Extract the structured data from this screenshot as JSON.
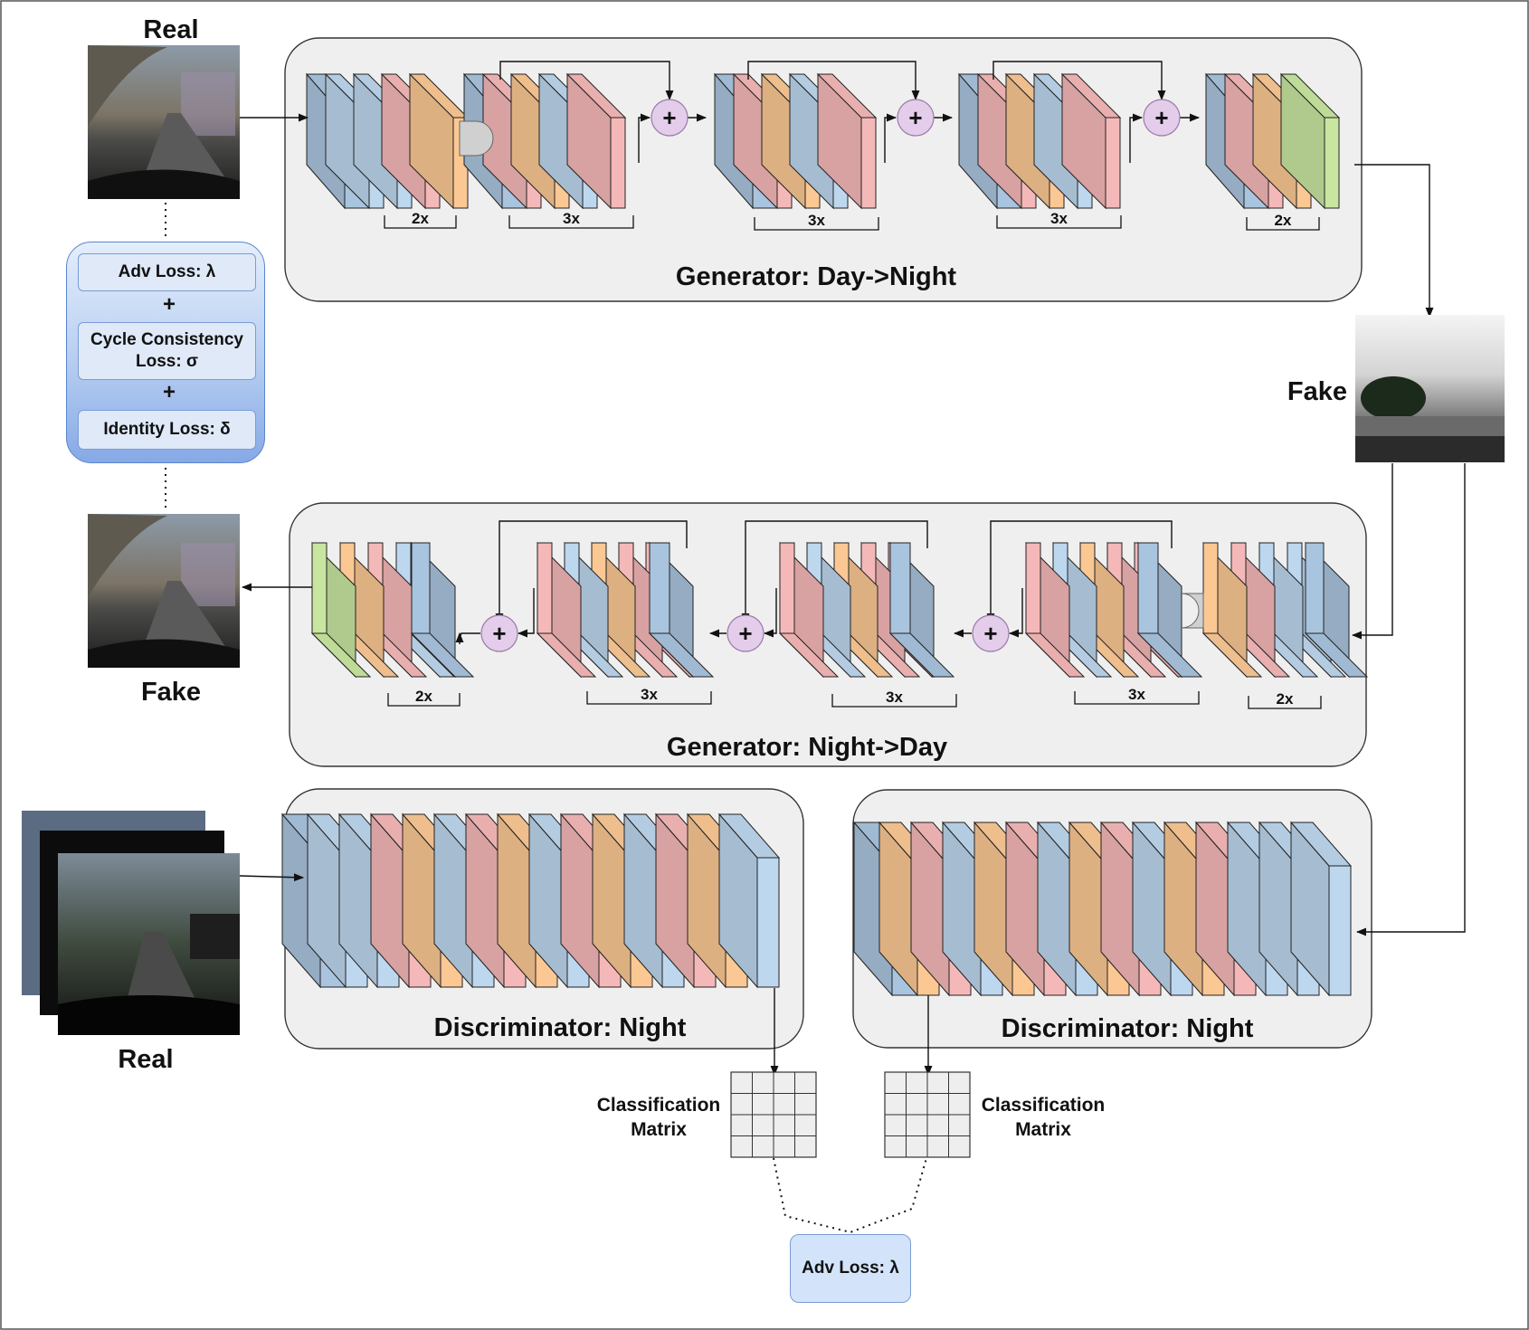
{
  "images": {
    "real_top": "Real",
    "fake_right": "Fake",
    "fake_left": "Fake",
    "real_bottom": "Real"
  },
  "generators": {
    "day_to_night": {
      "title": "Generator: Day->Night",
      "brackets": [
        "2x",
        "3x",
        "3x",
        "3x",
        "2x"
      ]
    },
    "night_to_day": {
      "title": "Generator: Night->Day",
      "brackets": [
        "2x",
        "3x",
        "3x",
        "3x",
        "2x"
      ]
    }
  },
  "discriminators": {
    "left_title": "Discriminator: Night",
    "right_title": "Discriminator: Night"
  },
  "classification": {
    "left_label_line1": "Classification",
    "left_label_line2": "Matrix",
    "right_label_line1": "Classification",
    "right_label_line2": "Matrix"
  },
  "losses": {
    "adv": "Adv Loss: λ",
    "plus1": "+",
    "cycle_line1": "Cycle Consistency",
    "cycle_line2": "Loss: σ",
    "plus2": "+",
    "identity": "Identity Loss: δ",
    "adv_bottom": "Adv Loss: λ"
  },
  "plus_symbol": "+",
  "colors": {
    "blue": "#bdd7ee",
    "blue_dark": "#a9c4de",
    "pink": "#f5b8b8",
    "orange": "#fbc894",
    "green": "#c8e6a0",
    "panel": "#efefef",
    "sum_node": "#e3cdea",
    "loss_box": "#dfe9f8"
  }
}
